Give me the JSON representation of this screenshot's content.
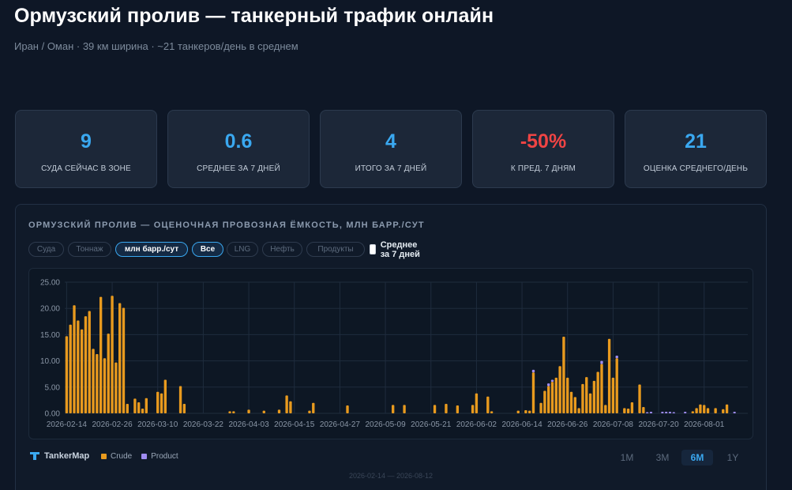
{
  "header": {
    "title": "Ормузский пролив — танкерный трафик онлайн",
    "subtitle": "Иран / Оман · 39 км ширина · ~21 танкеров/день в среднем"
  },
  "stats": [
    {
      "value": "9",
      "label": "СУДА СЕЙЧАС В ЗОНЕ",
      "negative": false
    },
    {
      "value": "0.6",
      "label": "СРЕДНЕЕ ЗА 7 ДНЕЙ",
      "negative": false
    },
    {
      "value": "4",
      "label": "ИТОГО ЗА 7 ДНЕЙ",
      "negative": false
    },
    {
      "value": "-50%",
      "label": "К ПРЕД. 7 ДНЯМ",
      "negative": true
    },
    {
      "value": "21",
      "label": "ОЦЕНКА СРЕДНЕГО/ДЕНЬ",
      "negative": false
    }
  ],
  "panel": {
    "title": "ОРМУЗСКИЙ ПРОЛИВ — ОЦЕНОЧНАЯ ПРОВОЗНАЯ ЁМКОСТЬ, МЛН БАРР./СУТ",
    "metric_chips": [
      {
        "label": "Суда",
        "active": false
      },
      {
        "label": "Тоннаж",
        "active": false
      },
      {
        "label": "млн барр./сут",
        "active": true
      }
    ],
    "type_chips": [
      {
        "label": "Все",
        "active": true
      },
      {
        "label": "LNG",
        "active": false
      },
      {
        "label": "Нефть",
        "active": false
      },
      {
        "label": "Продукты",
        "active": false
      }
    ],
    "avg_toggle": {
      "label": "Среднее за 7 дней",
      "checked": false
    },
    "brand": "TankerMap",
    "ranges": [
      {
        "label": "1M",
        "active": false
      },
      {
        "label": "3M",
        "active": false
      },
      {
        "label": "6M",
        "active": true
      },
      {
        "label": "1Y",
        "active": false
      }
    ],
    "date_range": "2026-02-14 — 2026-08-12"
  },
  "colors": {
    "crude": "#e89a1e",
    "product": "#9f8cf2",
    "accent": "#3aa8f0",
    "negative": "#ef4444"
  },
  "chart_data": {
    "type": "bar",
    "stacked": true,
    "x_start": "2026-02-14",
    "x_end": "2026-08-12",
    "ylim": [
      0,
      25
    ],
    "y_ticks": [
      "0.00",
      "5.00",
      "10.00",
      "15.00",
      "20.00",
      "25.00"
    ],
    "x_ticks": [
      "2026-02-14",
      "2026-02-26",
      "2026-03-10",
      "2026-03-22",
      "2026-04-03",
      "2026-04-15",
      "2026-04-27",
      "2026-05-09",
      "2026-05-21",
      "2026-06-02",
      "2026-06-14",
      "2026-06-26",
      "2026-07-08",
      "2026-07-20",
      "2026-08-01"
    ],
    "grid": true,
    "series": [
      {
        "name": "Crude",
        "points": [
          [
            "2026-02-14",
            14.7
          ],
          [
            "2026-02-15",
            16.9
          ],
          [
            "2026-02-16",
            20.6
          ],
          [
            "2026-02-17",
            17.7
          ],
          [
            "2026-02-18",
            16.0
          ],
          [
            "2026-02-19",
            18.5
          ],
          [
            "2026-02-20",
            19.5
          ],
          [
            "2026-02-21",
            12.3
          ],
          [
            "2026-02-22",
            11.3
          ],
          [
            "2026-02-23",
            22.2
          ],
          [
            "2026-02-24",
            10.5
          ],
          [
            "2026-02-25",
            15.2
          ],
          [
            "2026-02-26",
            22.4
          ],
          [
            "2026-02-27",
            9.7
          ],
          [
            "2026-02-28",
            21.0
          ],
          [
            "2026-03-01",
            20.1
          ],
          [
            "2026-03-02",
            1.8
          ],
          [
            "2026-03-04",
            2.8
          ],
          [
            "2026-03-05",
            2.1
          ],
          [
            "2026-03-06",
            0.9
          ],
          [
            "2026-03-07",
            2.9
          ],
          [
            "2026-03-10",
            4.1
          ],
          [
            "2026-03-11",
            3.8
          ],
          [
            "2026-03-12",
            6.4
          ],
          [
            "2026-03-16",
            5.2
          ],
          [
            "2026-03-17",
            1.8
          ],
          [
            "2026-03-29",
            0.4
          ],
          [
            "2026-03-30",
            0.4
          ],
          [
            "2026-04-03",
            0.7
          ],
          [
            "2026-04-07",
            0.5
          ],
          [
            "2026-04-11",
            0.7
          ],
          [
            "2026-04-13",
            3.4
          ],
          [
            "2026-04-14",
            2.3
          ],
          [
            "2026-04-19",
            0.5
          ],
          [
            "2026-04-20",
            2.0
          ],
          [
            "2026-04-29",
            1.5
          ],
          [
            "2026-05-11",
            1.6
          ],
          [
            "2026-05-14",
            1.6
          ],
          [
            "2026-05-22",
            1.6
          ],
          [
            "2026-05-25",
            1.8
          ],
          [
            "2026-05-28",
            1.5
          ],
          [
            "2026-06-01",
            1.6
          ],
          [
            "2026-06-02",
            3.8
          ],
          [
            "2026-06-05",
            3.2
          ],
          [
            "2026-06-06",
            0.4
          ],
          [
            "2026-06-13",
            0.5
          ],
          [
            "2026-06-15",
            0.6
          ],
          [
            "2026-06-16",
            0.5
          ],
          [
            "2026-06-17",
            7.8
          ],
          [
            "2026-06-19",
            2.0
          ],
          [
            "2026-06-20",
            4.3
          ],
          [
            "2026-06-21",
            5.2
          ],
          [
            "2026-06-22",
            6.0
          ],
          [
            "2026-06-23",
            6.8
          ],
          [
            "2026-06-24",
            9.0
          ],
          [
            "2026-06-25",
            14.6
          ],
          [
            "2026-06-26",
            6.8
          ],
          [
            "2026-06-27",
            4.1
          ],
          [
            "2026-06-28",
            3.1
          ],
          [
            "2026-06-29",
            1.0
          ],
          [
            "2026-06-30",
            5.6
          ],
          [
            "2026-07-01",
            6.9
          ],
          [
            "2026-07-02",
            3.8
          ],
          [
            "2026-07-03",
            6.2
          ],
          [
            "2026-07-04",
            7.9
          ],
          [
            "2026-07-05",
            9.4
          ],
          [
            "2026-07-06",
            1.6
          ],
          [
            "2026-07-07",
            14.2
          ],
          [
            "2026-07-08",
            6.8
          ],
          [
            "2026-07-09",
            10.5
          ],
          [
            "2026-07-11",
            1.0
          ],
          [
            "2026-07-12",
            0.9
          ],
          [
            "2026-07-13",
            2.1
          ],
          [
            "2026-07-15",
            5.5
          ],
          [
            "2026-07-16",
            1.2
          ],
          [
            "2026-07-29",
            0.4
          ],
          [
            "2026-07-30",
            1.0
          ],
          [
            "2026-07-31",
            1.7
          ],
          [
            "2026-08-01",
            1.6
          ],
          [
            "2026-08-02",
            1.0
          ],
          [
            "2026-08-04",
            1.0
          ],
          [
            "2026-08-06",
            0.8
          ],
          [
            "2026-08-07",
            1.7
          ]
        ]
      },
      {
        "name": "Product",
        "points": [
          [
            "2026-06-17",
            0.5
          ],
          [
            "2026-06-21",
            0.5
          ],
          [
            "2026-06-22",
            0.4
          ],
          [
            "2026-07-05",
            0.6
          ],
          [
            "2026-07-09",
            0.5
          ],
          [
            "2026-07-17",
            0.2
          ],
          [
            "2026-07-18",
            0.3
          ],
          [
            "2026-07-21",
            0.3
          ],
          [
            "2026-07-22",
            0.3
          ],
          [
            "2026-07-23",
            0.3
          ],
          [
            "2026-07-24",
            0.2
          ],
          [
            "2026-07-27",
            0.3
          ],
          [
            "2026-08-09",
            0.3
          ]
        ]
      }
    ]
  }
}
